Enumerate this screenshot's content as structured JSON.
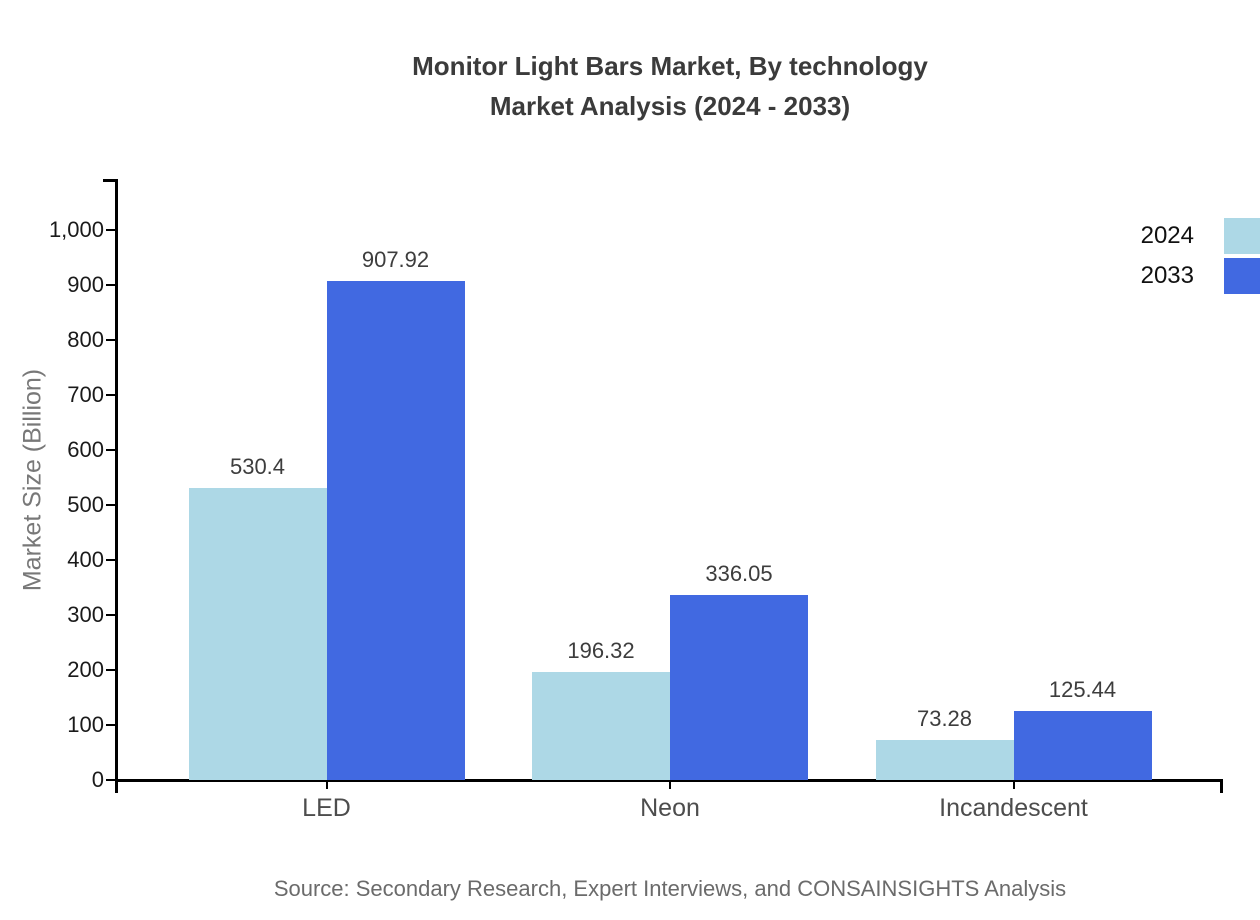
{
  "title": {
    "line1": "Monitor Light Bars Market, By technology",
    "line2": "Market Analysis (2024 - 2033)"
  },
  "source": "Source: Secondary Research, Expert Interviews, and CONSAINSIGHTS Analysis",
  "legend": {
    "items": [
      {
        "label": "2024",
        "color": "#add8e6"
      },
      {
        "label": "2033",
        "color": "#4169e1"
      }
    ]
  },
  "chart_data": {
    "type": "bar",
    "title": "Monitor Light Bars Market, By technology Market Analysis (2024 - 2033)",
    "categories": [
      "LED",
      "Neon",
      "Incandescent"
    ],
    "series": [
      {
        "name": "2024",
        "color": "#add8e6",
        "values": [
          530.4,
          196.32,
          73.28
        ]
      },
      {
        "name": "2033",
        "color": "#4169e1",
        "values": [
          907.92,
          336.05,
          125.44
        ]
      }
    ],
    "xlabel": "",
    "ylabel": "Market Size (Billion)",
    "ylim": [
      0,
      1000
    ],
    "ytick_step": 100,
    "ytick_labels": [
      "0",
      "100",
      "200",
      "300",
      "400",
      "500",
      "600",
      "700",
      "800",
      "900",
      "1,000"
    ],
    "grid": false,
    "legend_position": "top-right",
    "axis_color": "#000000",
    "value_label_color": "#3d3d3d"
  }
}
